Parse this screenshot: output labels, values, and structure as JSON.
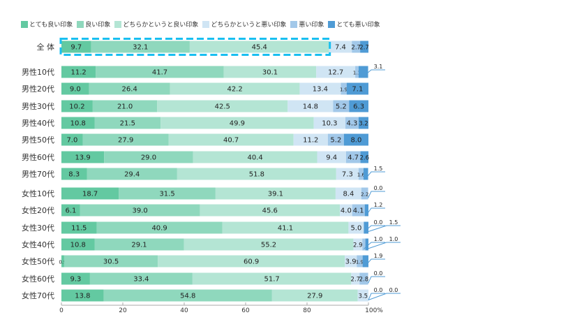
{
  "chart_data": {
    "type": "bar",
    "orientation": "horizontal",
    "stacked": true,
    "legend_position": "top",
    "xlim": [
      0,
      100
    ],
    "x_ticks": [
      "0",
      "20",
      "40",
      "60",
      "80",
      "100%"
    ],
    "colors": [
      "#63c9a1",
      "#8fd8bd",
      "#b4e5d4",
      "#d0e5f4",
      "#a2c8e9",
      "#4f9bd5"
    ],
    "highlight_color": "#19bff0",
    "series": [
      {
        "name": "とても良い印象"
      },
      {
        "name": "良い印象"
      },
      {
        "name": "どちらかというと良い印象"
      },
      {
        "name": "どちらかというと悪い印象"
      },
      {
        "name": "悪い印象"
      },
      {
        "name": "とても悪い印象"
      }
    ],
    "rows": [
      {
        "label": "全 体",
        "values": [
          9.7,
          32.1,
          45.4,
          7.4,
          2.7,
          2.7
        ],
        "highlighted": true
      },
      {
        "label": "男性10代",
        "values": [
          11.2,
          41.7,
          30.1,
          12.7,
          1.1,
          3.1
        ]
      },
      {
        "label": "男性20代",
        "values": [
          9.0,
          26.4,
          42.2,
          13.4,
          1.9,
          7.1
        ]
      },
      {
        "label": "男性30代",
        "values": [
          10.2,
          21.0,
          42.5,
          14.8,
          5.2,
          6.3
        ]
      },
      {
        "label": "男性40代",
        "values": [
          10.8,
          21.5,
          49.9,
          10.3,
          4.3,
          3.2
        ]
      },
      {
        "label": "男性50代",
        "values": [
          7.0,
          27.9,
          40.7,
          11.2,
          5.2,
          8.0
        ]
      },
      {
        "label": "男性60代",
        "values": [
          13.9,
          29.0,
          40.4,
          9.4,
          4.7,
          2.6
        ]
      },
      {
        "label": "男性70代",
        "values": [
          8.3,
          29.4,
          51.8,
          7.3,
          1.6,
          1.5
        ]
      },
      {
        "label": "女性10代",
        "values": [
          18.7,
          31.5,
          39.1,
          8.4,
          2.2,
          0.0
        ]
      },
      {
        "label": "女性20代",
        "values": [
          6.1,
          39.0,
          45.6,
          4.0,
          4.1,
          1.2
        ]
      },
      {
        "label": "女性30代",
        "values": [
          11.5,
          40.9,
          41.1,
          5.0,
          0.0,
          1.5
        ]
      },
      {
        "label": "女性40代",
        "values": [
          10.8,
          29.1,
          55.2,
          2.9,
          1.0,
          1.0
        ]
      },
      {
        "label": "女性50代",
        "values": [
          0.9,
          30.5,
          60.9,
          3.9,
          1.9,
          1.9
        ]
      },
      {
        "label": "女性60代",
        "values": [
          9.3,
          33.4,
          51.7,
          2.7,
          2.8,
          0.0
        ]
      },
      {
        "label": "女性70代",
        "values": [
          13.8,
          54.8,
          27.9,
          3.5,
          0.0,
          0.0
        ]
      }
    ]
  }
}
